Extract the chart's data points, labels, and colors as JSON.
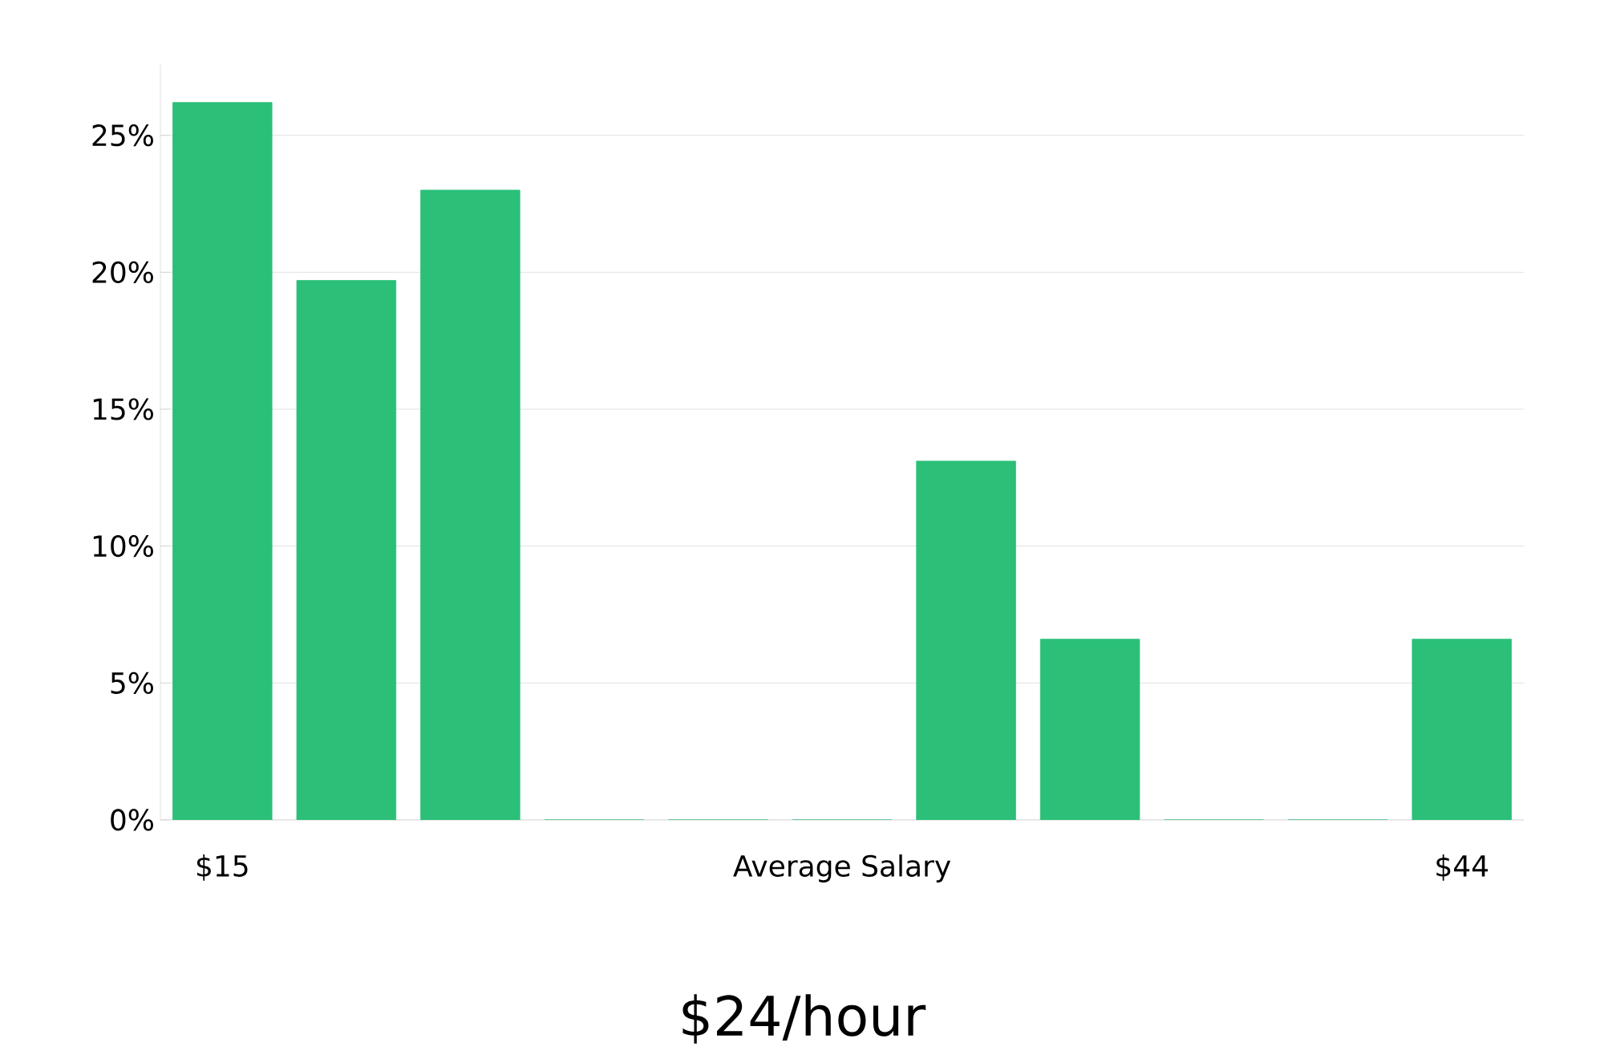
{
  "chart_data": {
    "type": "bar",
    "title": "$24/hour",
    "xlabel": "Average Salary",
    "categories": [
      "$15",
      null,
      null,
      null,
      null,
      null,
      null,
      null,
      null,
      null,
      "$44"
    ],
    "values": [
      26.2,
      19.7,
      23.0,
      0,
      0,
      0,
      13.1,
      6.6,
      0,
      0,
      6.6
    ],
    "color": "#2bbf78",
    "ylim": [
      0,
      27.6
    ],
    "yticks": [
      {
        "value": 0,
        "label": "0%"
      },
      {
        "value": 5,
        "label": "5%"
      },
      {
        "value": 10,
        "label": "10%"
      },
      {
        "value": 15,
        "label": "15%"
      },
      {
        "value": 20,
        "label": "20%"
      },
      {
        "value": 25,
        "label": "25%"
      }
    ],
    "grid": "y"
  }
}
